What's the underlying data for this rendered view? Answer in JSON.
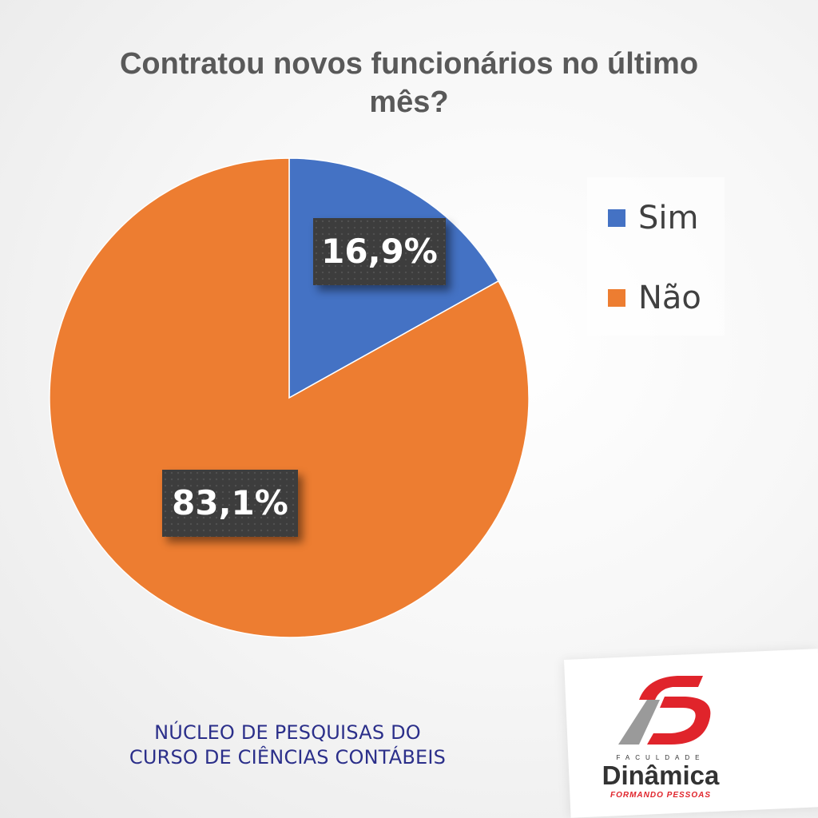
{
  "chart_data": {
    "type": "pie",
    "title": "Contratou novos funcionários no último mês?",
    "categories": [
      "Sim",
      "Não"
    ],
    "values": [
      16.9,
      83.1
    ],
    "data_labels": [
      "16,9%",
      "83,1%"
    ],
    "colors": [
      "#4472c4",
      "#ed7d31"
    ],
    "legend": {
      "position": "right",
      "entries": [
        "Sim",
        "Não"
      ]
    }
  },
  "footer": {
    "line1": "NÚCLEO DE PESQUISAS DO",
    "line2": "CURSO DE CIÊNCIAS CONTÁBEIS"
  },
  "logo": {
    "small_text": "FACULDADE",
    "name": "Dinâmica",
    "tagline": "FORMANDO PESSOAS",
    "colors": {
      "red": "#e0242b",
      "gray": "#9a9a9a",
      "text": "#333333"
    }
  }
}
